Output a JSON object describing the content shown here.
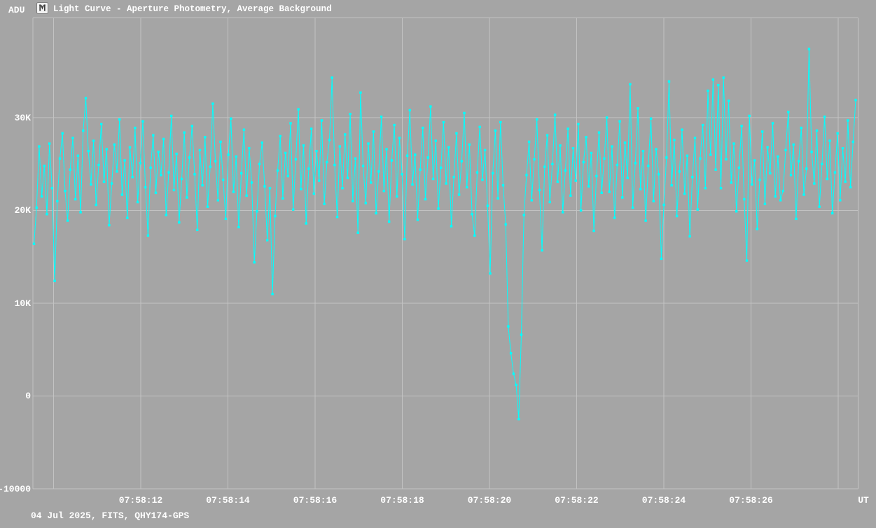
{
  "window": {
    "title": "Light Curve - Aperture Photometry, Average Background",
    "y_axis_unit": "ADU",
    "x_axis_unit": "UT",
    "footer": "04 Jul 2025, FITS, QHY174-GPS"
  },
  "colors": {
    "background": "#a5a5a5",
    "grid": "#c3c3c3",
    "series": "#00ffff",
    "text": "#ffffff",
    "icon_face": "#f2f2f2",
    "icon_glyph": "#3d3d3d"
  },
  "chart_data": {
    "type": "line",
    "title": "Light Curve - Aperture Photometry, Average Background",
    "ylabel": "ADU",
    "xlabel": "UT",
    "marker": "square",
    "grid": true,
    "legend": "none",
    "y_range_adu": [
      -10000,
      40750
    ],
    "x_range_ut": [
      "07:58:09.6",
      "07:58:28.5"
    ],
    "y_ticks": [
      {
        "value": 30000,
        "label": "30K"
      },
      {
        "value": 20000,
        "label": "20K"
      },
      {
        "value": 10000,
        "label": "10K"
      },
      {
        "value": 0,
        "label": "0"
      },
      {
        "value": -10000,
        "label": "-10000"
      }
    ],
    "x_ticks": [
      {
        "s": 10,
        "label": ""
      },
      {
        "s": 12,
        "label": "07:58:12"
      },
      {
        "s": 14,
        "label": "07:58:14"
      },
      {
        "s": 16,
        "label": "07:58:16"
      },
      {
        "s": 18,
        "label": "07:58:18"
      },
      {
        "s": 20,
        "label": "07:58:20"
      },
      {
        "s": 22,
        "label": "07:58:22"
      },
      {
        "s": 24,
        "label": "07:58:24"
      },
      {
        "s": 26,
        "label": "07:58:26"
      },
      {
        "s": 28,
        "label": ""
      }
    ],
    "values_unit": "kADU",
    "values_kadu": [
      16.4,
      20.3,
      26.9,
      21.5,
      24.8,
      19.6,
      27.2,
      22.4,
      12.4,
      21.0,
      25.6,
      28.3,
      22.1,
      18.9,
      24.4,
      27.8,
      21.2,
      25.9,
      19.8,
      28.6,
      32.1,
      26.4,
      22.8,
      27.5,
      20.6,
      24.9,
      29.3,
      23.1,
      26.6,
      18.4,
      22.9,
      27.1,
      24.2,
      29.8,
      21.7,
      25.4,
      19.2,
      26.8,
      23.6,
      28.9,
      20.9,
      25.1,
      29.6,
      22.5,
      17.3,
      24.6,
      28.1,
      21.9,
      26.3,
      23.8,
      27.7,
      19.5,
      24.1,
      30.2,
      22.2,
      26.1,
      18.7,
      23.4,
      28.4,
      21.4,
      25.7,
      29.1,
      23.9,
      17.9,
      26.5,
      22.7,
      27.9,
      20.4,
      24.7,
      31.5,
      25.3,
      21.1,
      27.4,
      23.3,
      19.1,
      26.0,
      29.9,
      22.0,
      25.8,
      18.2,
      24.0,
      28.7,
      21.6,
      26.7,
      23.0,
      14.4,
      19.9,
      25.0,
      27.3,
      22.6,
      16.8,
      22.4,
      11.0,
      19.4,
      24.3,
      28.0,
      21.3,
      26.2,
      23.7,
      29.4,
      20.1,
      25.5,
      30.9,
      22.3,
      27.0,
      18.6,
      24.5,
      28.8,
      21.8,
      26.4,
      23.2,
      29.7,
      20.7,
      25.2,
      27.6,
      34.3,
      24.9,
      19.3,
      26.9,
      22.4,
      28.2,
      23.5,
      30.4,
      21.0,
      25.6,
      17.6,
      32.7,
      24.8,
      20.8,
      27.2,
      23.0,
      28.5,
      19.7,
      24.2,
      30.1,
      22.1,
      26.6,
      18.8,
      25.4,
      29.2,
      21.5,
      27.8,
      23.9,
      16.9,
      25.9,
      30.8,
      22.8,
      26.0,
      19.0,
      24.4,
      28.9,
      21.2,
      25.7,
      31.2,
      23.4,
      27.5,
      20.2,
      24.6,
      29.5,
      22.9,
      26.8,
      18.3,
      23.6,
      28.3,
      21.7,
      25.3,
      30.5,
      22.5,
      27.1,
      19.6,
      17.3,
      24.1,
      29.0,
      23.3,
      26.5,
      20.5,
      13.2,
      24.0,
      28.6,
      21.3,
      29.5,
      22.7,
      18.5,
      7.5,
      4.6,
      2.4,
      1.2,
      -2.5,
      6.6,
      19.5,
      23.8,
      27.4,
      21.1,
      25.5,
      29.8,
      22.2,
      15.7,
      24.7,
      28.1,
      20.9,
      25.0,
      30.3,
      23.1,
      27.0,
      19.8,
      24.3,
      28.8,
      21.6,
      26.7,
      23.2,
      29.3,
      20.0,
      25.2,
      27.9,
      22.6,
      26.2,
      17.8,
      23.7,
      28.4,
      21.9,
      25.6,
      30.0,
      22.0,
      26.9,
      19.2,
      24.9,
      29.6,
      21.4,
      27.3,
      23.5,
      33.6,
      20.3,
      25.1,
      31.0,
      22.3,
      26.4,
      18.9,
      24.8,
      29.9,
      21.0,
      26.6,
      23.9,
      14.8,
      20.6,
      25.7,
      33.9,
      22.7,
      27.6,
      19.4,
      24.2,
      28.7,
      21.8,
      25.9,
      17.2,
      23.6,
      27.8,
      20.1,
      25.6,
      29.2,
      22.4,
      32.9,
      26.0,
      34.1,
      24.4,
      33.5,
      22.4,
      34.3,
      25.5,
      31.8,
      23.0,
      27.2,
      19.9,
      24.6,
      29.1,
      21.2,
      14.6,
      30.2,
      22.8,
      25.4,
      18.0,
      23.3,
      28.5,
      20.7,
      26.8,
      24.0,
      29.4,
      21.5,
      25.8,
      21.1,
      22.1,
      26.5,
      30.6,
      23.8,
      27.1,
      19.1,
      25.3,
      28.9,
      21.7,
      24.5,
      37.4,
      26.3,
      22.9,
      28.6,
      20.4,
      25.0,
      30.1,
      23.4,
      27.5,
      19.7,
      24.1,
      28.3,
      21.1,
      26.7,
      23.1,
      29.7,
      22.5,
      27.4,
      31.9
    ]
  }
}
